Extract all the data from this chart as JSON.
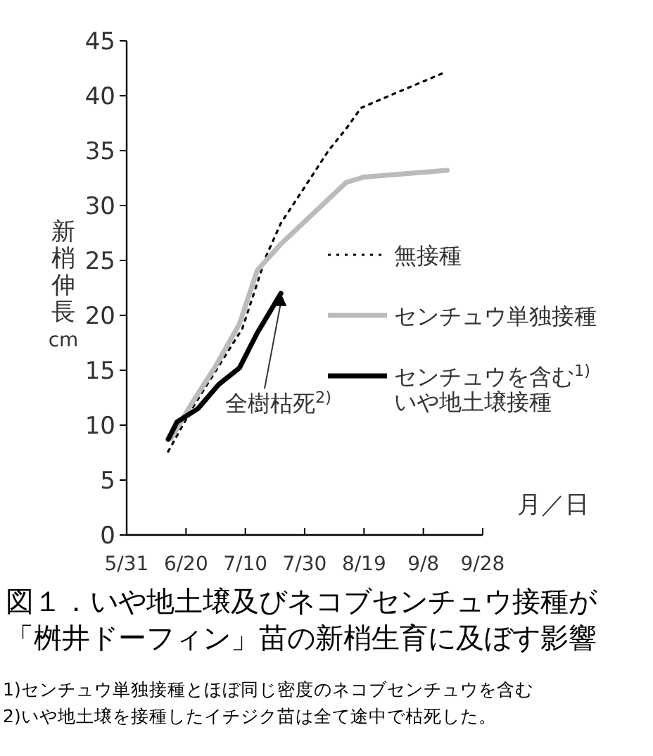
{
  "chart_data": {
    "type": "line",
    "title": "図１．いや地土壌及びネコブセンチュウ接種が「桝井ドーフィン」苗の新梢生育に及ぼす影響",
    "xlabel": "月／日",
    "ylabel": "新梢伸長cm",
    "xlim": [
      "--05-31",
      "--09-28"
    ],
    "xticks": [
      {
        "value": "--05-31",
        "label": "5/31"
      },
      {
        "value": "--06-20",
        "label": "6/20"
      },
      {
        "value": "--07-10",
        "label": "7/10"
      },
      {
        "value": "--07-30",
        "label": "7/30"
      },
      {
        "value": "--08-19",
        "label": "8/19"
      },
      {
        "value": "--09-08",
        "label": "9/8"
      },
      {
        "value": "--09-28",
        "label": "9/28"
      }
    ],
    "ylim": [
      0,
      45
    ],
    "yticks": [
      0,
      5,
      10,
      15,
      20,
      25,
      30,
      35,
      40,
      45
    ],
    "grid": false,
    "legend": "right",
    "marker": "none",
    "series": [
      {
        "name": "無接種",
        "color": "#000000",
        "line_style": "dotted",
        "x": [
          "--06-14",
          "--06-22",
          "--07-09",
          "--07-17",
          "--07-22",
          "--08-01",
          "--08-07",
          "--08-13",
          "--08-18",
          "--08-31",
          "--09-15"
        ],
        "values": [
          7.6,
          11.5,
          18.8,
          25.4,
          28.4,
          32.5,
          35.0,
          37.0,
          38.9,
          40.4,
          42.1
        ]
      },
      {
        "name": "センチュウ単独接種",
        "color": "#bbbbbb",
        "line_style": "solid",
        "x": [
          "--06-15",
          "--06-22",
          "--06-30",
          "--07-08",
          "--07-14",
          "--07-22",
          "--08-13",
          "--08-19",
          "--09-16"
        ],
        "values": [
          8.8,
          12.0,
          15.4,
          19.2,
          24.1,
          26.5,
          32.1,
          32.6,
          33.2
        ]
      },
      {
        "name": "センチュウを含む$^{1)}$いや地土壌接種",
        "color": "#000000",
        "line_style": "solid",
        "x": [
          "--06-14",
          "--06-17",
          "--06-24",
          "--07-01",
          "--07-08",
          "--07-14",
          "--07-22"
        ],
        "values": [
          8.7,
          10.3,
          11.5,
          13.7,
          15.2,
          18.4,
          22.0
        ]
      }
    ],
    "annotations": [
      {
        "text": "全樹枯死$^{2)}$",
        "x": "--07-22",
        "y": 22.0
      },
      "1)センチュウ単独接種とほぼ同じ密度のネコブセンチュウを含む",
      "2)いや地土壌を接種したイチジク苗は全て途中で枯死した。"
    ]
  }
}
